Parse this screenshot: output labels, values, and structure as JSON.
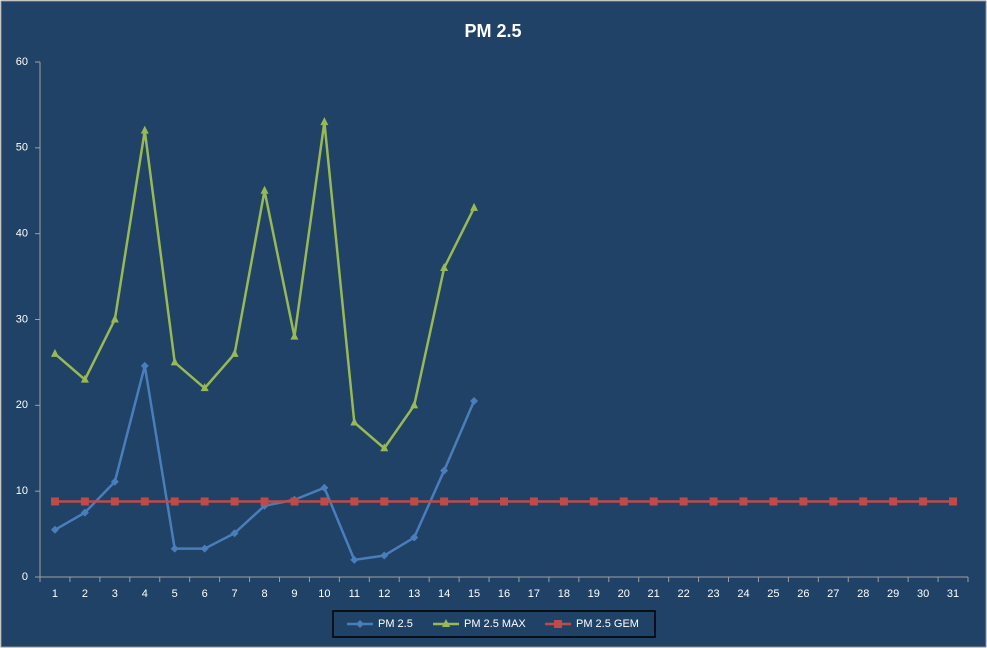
{
  "chart_data": {
    "type": "line",
    "title": "PM 2.5",
    "categories": [
      "1",
      "2",
      "3",
      "4",
      "5",
      "6",
      "7",
      "8",
      "9",
      "10",
      "11",
      "12",
      "13",
      "14",
      "15",
      "16",
      "17",
      "18",
      "19",
      "20",
      "21",
      "22",
      "23",
      "24",
      "25",
      "26",
      "27",
      "28",
      "29",
      "30",
      "31"
    ],
    "series": [
      {
        "name": "PM 2.5",
        "color": "#4a7ebb",
        "marker": "diamond",
        "values": [
          5.5,
          7.5,
          11.1,
          24.6,
          3.3,
          3.3,
          5.1,
          8.3,
          9.0,
          10.4,
          2.0,
          2.5,
          4.6,
          12.4,
          20.5,
          null,
          null,
          null,
          null,
          null,
          null,
          null,
          null,
          null,
          null,
          null,
          null,
          null,
          null,
          null,
          null
        ]
      },
      {
        "name": "PM 2.5 MAX",
        "color": "#98b954",
        "marker": "triangle",
        "values": [
          26,
          23,
          30,
          52,
          25,
          22,
          26,
          45,
          28,
          53,
          18,
          15,
          20,
          36,
          43,
          null,
          null,
          null,
          null,
          null,
          null,
          null,
          null,
          null,
          null,
          null,
          null,
          null,
          null,
          null,
          null
        ]
      },
      {
        "name": "PM 2.5 GEM",
        "color": "#be4b48",
        "marker": "square",
        "values": [
          8.8,
          8.8,
          8.8,
          8.8,
          8.8,
          8.8,
          8.8,
          8.8,
          8.8,
          8.8,
          8.8,
          8.8,
          8.8,
          8.8,
          8.8,
          8.8,
          8.8,
          8.8,
          8.8,
          8.8,
          8.8,
          8.8,
          8.8,
          8.8,
          8.8,
          8.8,
          8.8,
          8.8,
          8.8,
          8.8,
          8.8
        ]
      }
    ],
    "ylim": [
      0,
      60
    ],
    "yticks": [
      0,
      10,
      20,
      30,
      40,
      50,
      60
    ],
    "grid": false
  }
}
